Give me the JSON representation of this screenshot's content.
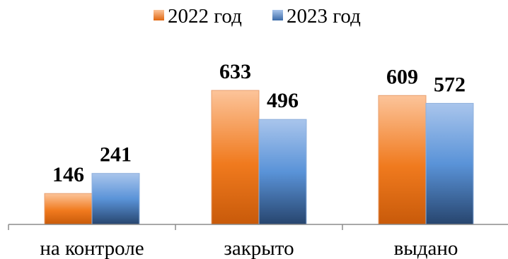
{
  "chart_data": {
    "type": "bar",
    "categories": [
      "на контроле",
      "закрыто",
      "выдано"
    ],
    "series": [
      {
        "name": "2022 год",
        "values": [
          146,
          633,
          609
        ],
        "color": "#f0741a"
      },
      {
        "name": "2023 год",
        "values": [
          241,
          496,
          572
        ],
        "color": "#4a86d0"
      }
    ],
    "ylim": [
      0,
      660
    ],
    "grid": false,
    "legend": "top-center",
    "title": "",
    "xlabel": "",
    "ylabel": ""
  }
}
